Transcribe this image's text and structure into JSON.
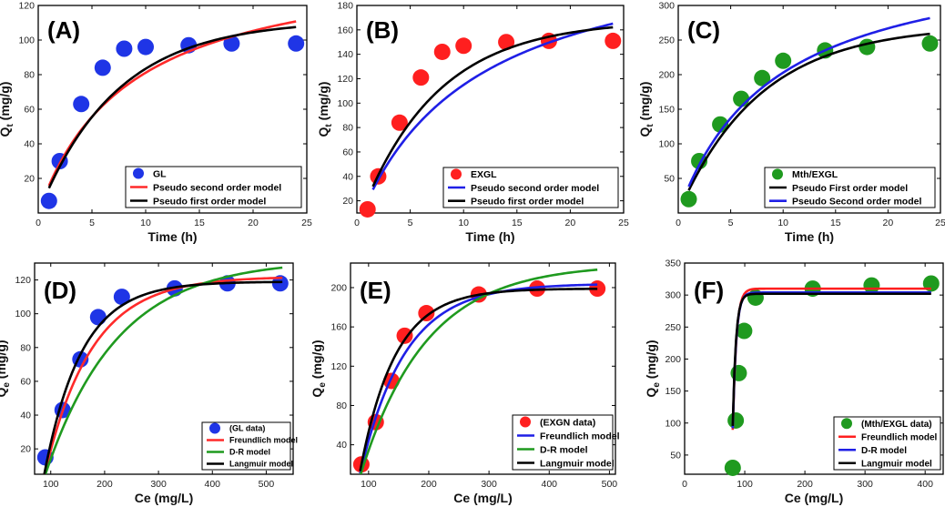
{
  "chart_data": [
    {
      "panel": "(A)",
      "type": "scatter",
      "xlabel": "Time (h)",
      "ylabel": "Qt (mg/g)",
      "ylabel_main": "Q",
      "ylabel_sub": "t",
      "ylabel_unit": " (mg/g)",
      "xlim": [
        0,
        25
      ],
      "ylim": [
        0,
        120
      ],
      "xticks": [
        0,
        5,
        10,
        15,
        20,
        25
      ],
      "yticks": [
        20,
        40,
        60,
        80,
        100,
        120
      ],
      "legend_position": "bottom-right",
      "scatter": {
        "name": "GL",
        "color": "#1f35e6",
        "x": [
          1,
          2,
          4,
          6,
          8,
          10,
          14,
          18,
          24
        ],
        "y": [
          7,
          30,
          63,
          84,
          95,
          96,
          97,
          98,
          98
        ]
      },
      "curves": [
        {
          "name": "Pseudo second order model",
          "color": "#ff2a2a",
          "model": "pso",
          "qe": 150,
          "k": 0.000785,
          "xrange": [
            1,
            24
          ]
        },
        {
          "name": "Pseudo first order model",
          "color": "#000000",
          "model": "pfo",
          "qe": 111.6,
          "k": 0.1376,
          "xrange": [
            1,
            24
          ]
        }
      ]
    },
    {
      "panel": "(B)",
      "type": "scatter",
      "xlabel": "Time (h)",
      "ylabel": "Qt (mg/g)",
      "ylabel_main": "Q",
      "ylabel_sub": "t",
      "ylabel_unit": " (mg/g)",
      "xlim": [
        0,
        25
      ],
      "ylim": [
        10,
        180
      ],
      "xticks": [
        0,
        5,
        10,
        15,
        20,
        25
      ],
      "yticks": [
        20,
        40,
        60,
        80,
        100,
        120,
        140,
        160,
        180
      ],
      "legend_position": "bottom-right",
      "scatter": {
        "name": "EXGL",
        "color": "#ff1f1f",
        "x": [
          1,
          2,
          4,
          6,
          8,
          10,
          14,
          18,
          24
        ],
        "y": [
          13,
          40,
          84,
          121,
          142,
          147,
          150,
          151,
          151
        ]
      },
      "curves": [
        {
          "name": "Pseudo second order model",
          "color": "#1f1fe6",
          "model": "pso",
          "qe": 240,
          "k": 0.000383,
          "xrange": [
            1.5,
            24
          ]
        },
        {
          "name": "Pseudo first order model",
          "color": "#000000",
          "model": "pfo",
          "qe": 168,
          "k": 0.1395,
          "xrange": [
            1.5,
            24
          ]
        }
      ]
    },
    {
      "panel": "(C)",
      "type": "scatter",
      "xlabel": "Time (h)",
      "ylabel": "Qt (mg/g)",
      "ylabel_main": "Q",
      "ylabel_sub": "t",
      "ylabel_unit": " (mg/g)",
      "xlim": [
        0,
        25
      ],
      "ylim": [
        0,
        300
      ],
      "xticks": [
        0,
        5,
        10,
        15,
        20,
        25
      ],
      "yticks": [
        50,
        100,
        150,
        200,
        250,
        300
      ],
      "legend_position": "bottom-right",
      "scatter": {
        "name": "Mth/EXGL",
        "color": "#1f9a1f",
        "x": [
          1,
          2,
          4,
          6,
          8,
          10,
          14,
          18,
          24
        ],
        "y": [
          20,
          75,
          128,
          165,
          195,
          220,
          235,
          240,
          245
        ]
      },
      "curves": [
        {
          "name": "Pseudo First order model",
          "color": "#000000",
          "model": "pfo",
          "qe": 271.4,
          "k": 0.1286,
          "xrange": [
            1,
            24
          ]
        },
        {
          "name": "Pseudo Second order model",
          "color": "#1f1fe6",
          "model": "pso",
          "qe": 390,
          "k": 0.000278,
          "xrange": [
            1,
            24
          ]
        }
      ]
    },
    {
      "panel": "(D)",
      "type": "scatter",
      "xlabel": "Ce (mg/L)",
      "ylabel": "Qe (mg/g)",
      "ylabel_main": "Q",
      "ylabel_sub": "e",
      "ylabel_unit": " (mg/g)",
      "xlim": [
        70,
        550
      ],
      "ylim": [
        5,
        130
      ],
      "xticks": [
        100,
        200,
        300,
        400,
        500
      ],
      "yticks": [
        20,
        40,
        60,
        80,
        100,
        120
      ],
      "legend_position": "bottom-right",
      "scatter": {
        "name": "(GL data)",
        "color": "#1f35e6",
        "x": [
          90,
          122,
          155,
          188,
          232,
          330,
          428,
          526
        ],
        "y": [
          15,
          43,
          73,
          98,
          110,
          115,
          118,
          118
        ]
      },
      "curves": [
        {
          "name": "Freundlich model",
          "color": "#ff2a2a",
          "model": "sat",
          "a": 122,
          "x0": 85,
          "k": 0.0115,
          "xrange": [
            88,
            530
          ]
        },
        {
          "name": "D-R model",
          "color": "#1f9a1f",
          "model": "sat",
          "a": 132,
          "x0": 85,
          "k": 0.0075,
          "xrange": [
            88,
            530
          ]
        },
        {
          "name": "Langmuir model",
          "color": "#000000",
          "model": "sat",
          "a": 119,
          "x0": 85,
          "k": 0.0145,
          "xrange": [
            88,
            530
          ]
        }
      ]
    },
    {
      "panel": "(E)",
      "type": "scatter",
      "xlabel": "Ce (mg/L)",
      "ylabel": "Qe (mg/g)",
      "ylabel_main": "Q",
      "ylabel_sub": "e",
      "ylabel_unit": " (mg/g)",
      "xlim": [
        70,
        510
      ],
      "ylim": [
        10,
        225
      ],
      "xticks": [
        100,
        200,
        300,
        400,
        500
      ],
      "yticks": [
        40,
        80,
        120,
        160,
        200
      ],
      "legend_position": "bottom-right",
      "scatter": {
        "name": "(EXGN data)",
        "color": "#ff1f1f",
        "x": [
          88,
          112,
          138,
          160,
          196,
          283,
          380,
          480
        ],
        "y": [
          20,
          63,
          105,
          151,
          174,
          193,
          199,
          199
        ]
      },
      "curves": [
        {
          "name": "Freundlich model",
          "color": "#1f1fe6",
          "model": "sat",
          "a": 204,
          "x0": 82,
          "k": 0.0135,
          "xrange": [
            86,
            480
          ]
        },
        {
          "name": "D-R model",
          "color": "#1f9a1f",
          "model": "sat",
          "a": 224,
          "x0": 82,
          "k": 0.0092,
          "xrange": [
            86,
            480
          ]
        },
        {
          "name": "Langmuir model",
          "color": "#000000",
          "model": "sat",
          "a": 199,
          "x0": 82,
          "k": 0.0172,
          "xrange": [
            86,
            480
          ]
        }
      ]
    },
    {
      "panel": "(F)",
      "type": "scatter",
      "xlabel": "Ce (mg/L)",
      "ylabel": "Qe (mg/g)",
      "ylabel_main": "Q",
      "ylabel_sub": "e",
      "ylabel_unit": " (mg/g)",
      "xlim": [
        0,
        430
      ],
      "ylim": [
        20,
        350
      ],
      "xticks": [
        0,
        100,
        200,
        300,
        400
      ],
      "yticks": [
        50,
        100,
        150,
        200,
        250,
        300,
        350
      ],
      "legend_position": "bottom-right",
      "scatter": {
        "name": "(Mth/EXGL data)",
        "color": "#1f9a1f",
        "x": [
          80,
          85,
          90,
          99,
          118,
          213,
          311,
          410
        ],
        "y": [
          30,
          104,
          178,
          244,
          296,
          310,
          315,
          318
        ]
      },
      "curves": [
        {
          "name": "Freundlich model",
          "color": "#ff1f1f",
          "model": "sat",
          "a": 310,
          "x0": 78,
          "k": 0.17,
          "xrange": [
            80,
            410
          ]
        },
        {
          "name": "D-R model",
          "color": "#1f1fe6",
          "model": "sat",
          "a": 304,
          "x0": 78,
          "k": 0.18,
          "xrange": [
            80,
            410
          ]
        },
        {
          "name": "Langmuir model",
          "color": "#000000",
          "model": "sat",
          "a": 302,
          "x0": 78,
          "k": 0.19,
          "xrange": [
            80,
            410
          ]
        }
      ]
    }
  ]
}
